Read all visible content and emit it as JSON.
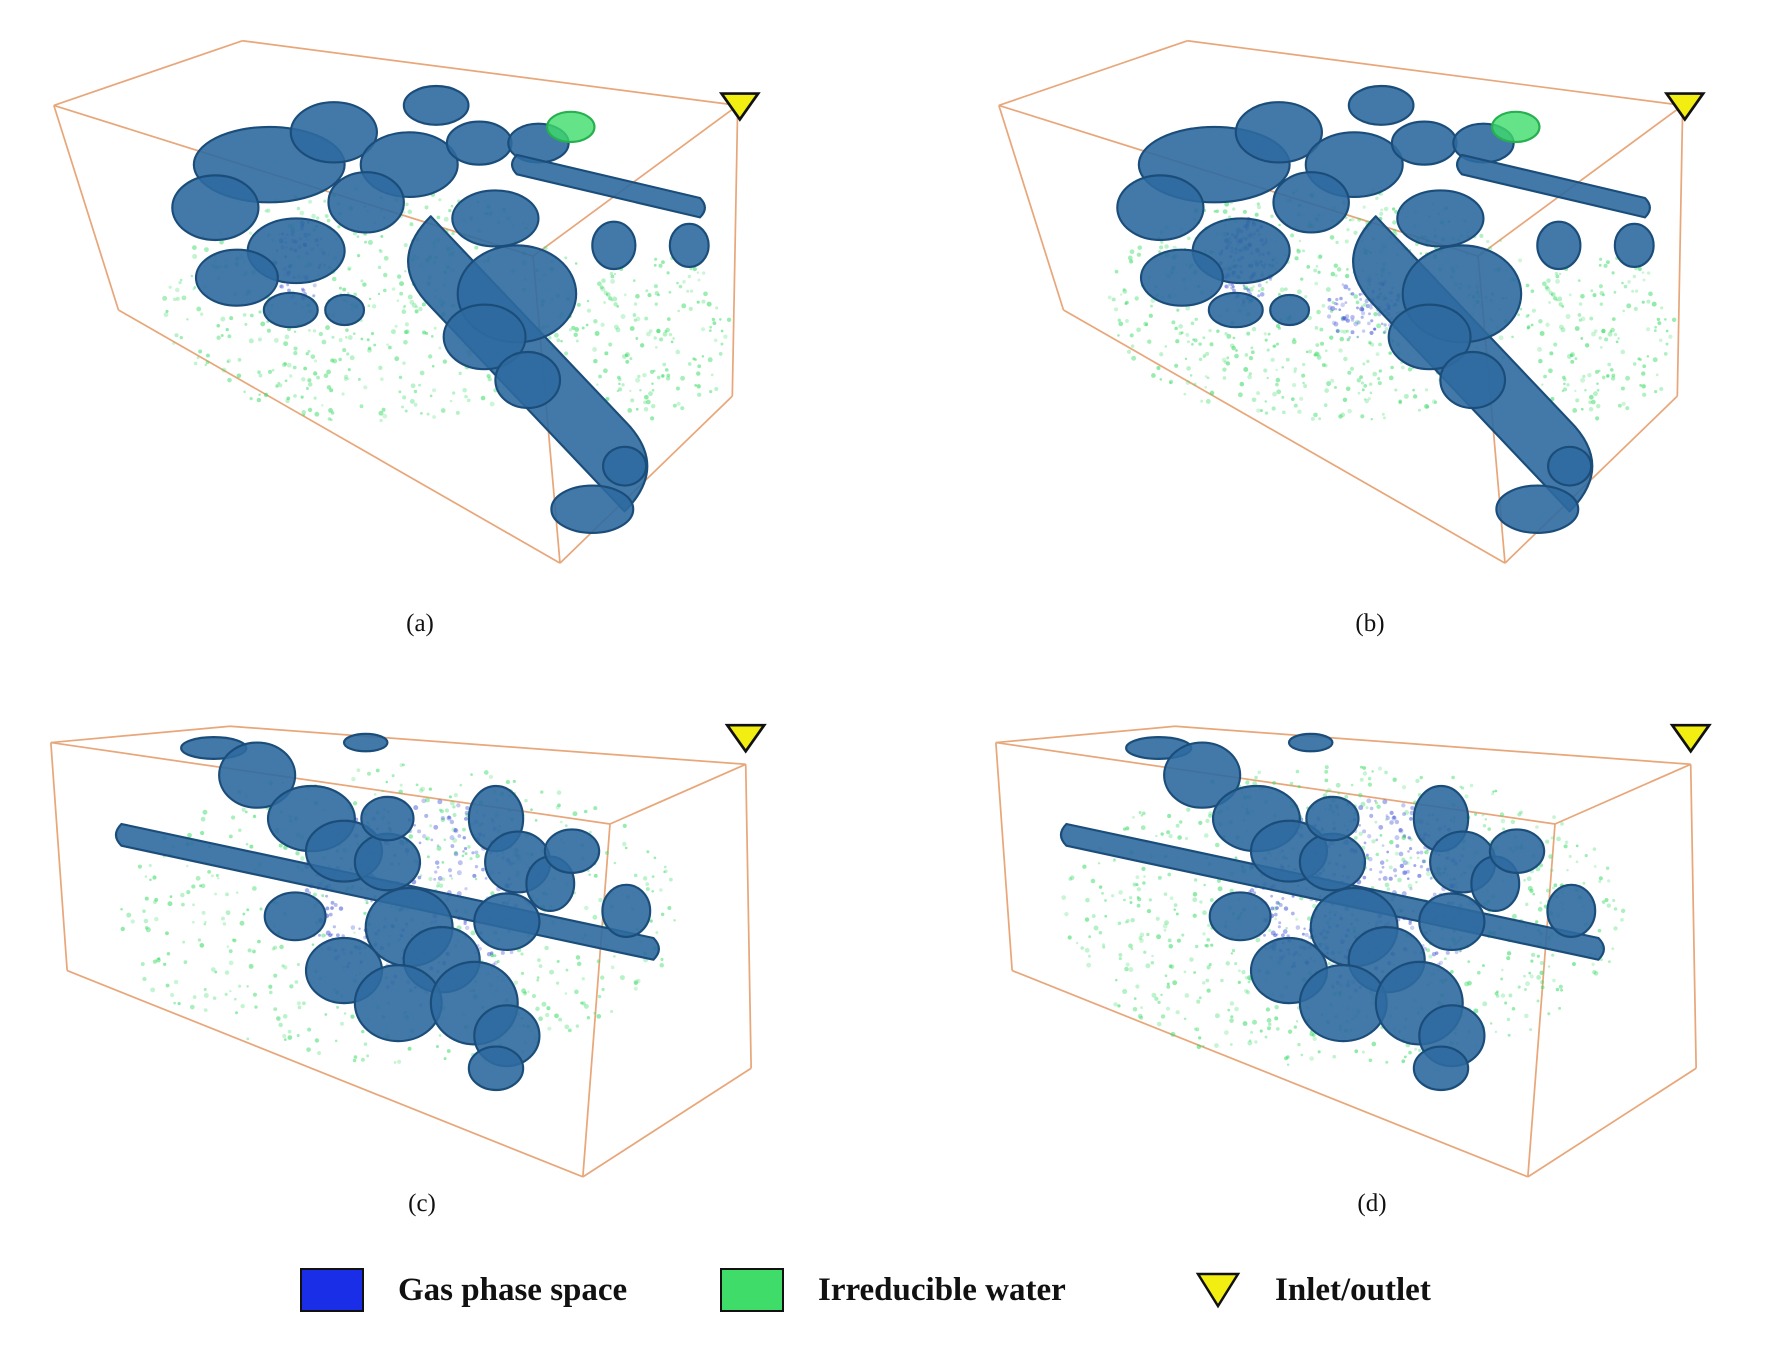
{
  "panels": [
    {
      "id": "a",
      "caption": "(a)"
    },
    {
      "id": "b",
      "caption": "(b)"
    },
    {
      "id": "c",
      "caption": "(c)"
    },
    {
      "id": "d",
      "caption": "(d)"
    }
  ],
  "legend": {
    "items": [
      {
        "label": "Gas phase space",
        "color": "#1a2ee8",
        "icon": "square-swatch"
      },
      {
        "label": "Irreducible water",
        "color": "#3fdc6a",
        "icon": "square-swatch"
      },
      {
        "label": "Inlet/outlet",
        "color": "#f2ee12",
        "icon": "triangle-down-icon"
      }
    ]
  },
  "colors": {
    "pore_fill": "#2f6aa0",
    "pore_edge": "#1b4d7a",
    "water_green": "#3fdc6a",
    "gas_blue": "#4a5bd9",
    "box_edge": "#e8a77a",
    "inlet_yellow": "#f2ee12"
  }
}
